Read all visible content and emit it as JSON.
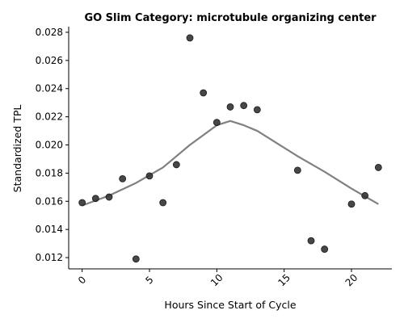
{
  "chart_data": {
    "type": "scatter",
    "title": "GO Slim Category: microtubule organizing center",
    "xlabel": "Hours Since Start of Cycle",
    "ylabel": "Standardized TPL",
    "xlim": [
      -1,
      23
    ],
    "ylim": [
      0.0112,
      0.0284
    ],
    "xticks": [
      0,
      5,
      10,
      15,
      20
    ],
    "yticks": [
      0.012,
      0.014,
      0.016,
      0.018,
      0.02,
      0.022,
      0.024,
      0.026,
      0.028
    ],
    "ytick_labels": [
      "0.012",
      "0.014",
      "0.016",
      "0.018",
      "0.020",
      "0.022",
      "0.024",
      "0.026",
      "0.028"
    ],
    "grid": false,
    "points": [
      {
        "x": 0,
        "y": 0.0159
      },
      {
        "x": 1,
        "y": 0.0162
      },
      {
        "x": 2,
        "y": 0.0163
      },
      {
        "x": 3,
        "y": 0.0176
      },
      {
        "x": 4,
        "y": 0.0119
      },
      {
        "x": 5,
        "y": 0.0178
      },
      {
        "x": 6,
        "y": 0.0159
      },
      {
        "x": 7,
        "y": 0.0186
      },
      {
        "x": 8,
        "y": 0.0276
      },
      {
        "x": 9,
        "y": 0.0237
      },
      {
        "x": 10,
        "y": 0.0216
      },
      {
        "x": 11,
        "y": 0.0227
      },
      {
        "x": 12,
        "y": 0.0228
      },
      {
        "x": 13,
        "y": 0.0225
      },
      {
        "x": 16,
        "y": 0.0182
      },
      {
        "x": 17,
        "y": 0.0132
      },
      {
        "x": 18,
        "y": 0.0126
      },
      {
        "x": 20,
        "y": 0.0158
      },
      {
        "x": 21,
        "y": 0.0164
      },
      {
        "x": 22,
        "y": 0.0184
      }
    ],
    "trend_line": {
      "x": [
        0,
        2,
        4,
        6,
        8,
        10,
        11,
        12,
        13,
        16,
        18,
        20,
        22
      ],
      "y": [
        0.0157,
        0.0164,
        0.0173,
        0.0184,
        0.02,
        0.0214,
        0.0217,
        0.0214,
        0.021,
        0.0192,
        0.0181,
        0.0169,
        0.0158
      ]
    },
    "colors": {
      "points": "#333333",
      "trend_line": "#808080",
      "axis": "#000000"
    }
  }
}
